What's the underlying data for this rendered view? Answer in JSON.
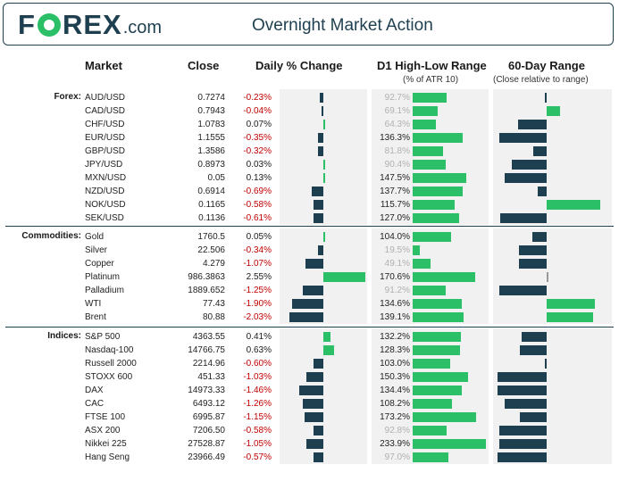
{
  "header": {
    "logo_f": "F",
    "logo_rex": "REX",
    "logo_com": ".com",
    "title": "Overnight Market Action"
  },
  "columns": {
    "market": "Market",
    "close": "Close",
    "change": "Daily % Change",
    "range": "D1 High-Low Range",
    "range_sub": "(% of ATR 10)",
    "sixty": "60-Day Range",
    "sixty_sub": "(Close relative to range)"
  },
  "colors": {
    "positive": "#2bbf68",
    "negative_bar": "#1e3f4f",
    "negative_text": "#c00000",
    "brand": "#1e3f4f"
  },
  "sections": [
    {
      "label": "Forex:",
      "rows": [
        {
          "name": "AUD/USD",
          "close": "0.7274",
          "change": "-0.23%",
          "chg": -0.23,
          "atr": "92.7%",
          "atr_v": 92.7,
          "faint": true,
          "pos": -0.04
        },
        {
          "name": "CAD/USD",
          "close": "0.7943",
          "change": "-0.04%",
          "chg": -0.04,
          "atr": "69.1%",
          "atr_v": 69.1,
          "faint": true,
          "pos": 0.25
        },
        {
          "name": "CHF/USD",
          "close": "1.0783",
          "change": "0.07%",
          "chg": 0.07,
          "atr": "64.3%",
          "atr_v": 64.3,
          "faint": true,
          "pos": -0.53
        },
        {
          "name": "EUR/USD",
          "close": "1.1555",
          "change": "-0.35%",
          "chg": -0.35,
          "atr": "136.3%",
          "atr_v": 136.3,
          "faint": false,
          "pos": -0.88
        },
        {
          "name": "GBP/USD",
          "close": "1.3586",
          "change": "-0.32%",
          "chg": -0.32,
          "atr": "81.8%",
          "atr_v": 81.8,
          "faint": true,
          "pos": -0.25
        },
        {
          "name": "JPY/USD",
          "close": "0.8973",
          "change": "0.03%",
          "chg": 0.03,
          "atr": "90.4%",
          "atr_v": 90.4,
          "faint": true,
          "pos": -0.65
        },
        {
          "name": "MXN/USD",
          "close": "0.05",
          "change": "0.13%",
          "chg": 0.13,
          "atr": "147.5%",
          "atr_v": 147.5,
          "faint": false,
          "pos": -0.78
        },
        {
          "name": "NZD/USD",
          "close": "0.6914",
          "change": "-0.69%",
          "chg": -0.69,
          "atr": "137.7%",
          "atr_v": 137.7,
          "faint": false,
          "pos": -0.17
        },
        {
          "name": "NOK/USD",
          "close": "0.1165",
          "change": "-0.58%",
          "chg": -0.58,
          "atr": "115.7%",
          "atr_v": 115.7,
          "faint": false,
          "pos": 1.0
        },
        {
          "name": "SEK/USD",
          "close": "0.1136",
          "change": "-0.61%",
          "chg": -0.61,
          "atr": "127.0%",
          "atr_v": 127.0,
          "faint": false,
          "pos": -0.87
        }
      ]
    },
    {
      "label": "Commodities:",
      "rows": [
        {
          "name": "Gold",
          "close": "1760.5",
          "change": "0.05%",
          "chg": 0.05,
          "atr": "104.0%",
          "atr_v": 104.0,
          "faint": false,
          "pos": -0.27
        },
        {
          "name": "Silver",
          "close": "22.506",
          "change": "-0.34%",
          "chg": -0.34,
          "atr": "19.5%",
          "atr_v": 19.5,
          "faint": true,
          "pos": -0.52
        },
        {
          "name": "Copper",
          "close": "4.279",
          "change": "-1.07%",
          "chg": -1.07,
          "atr": "49.1%",
          "atr_v": 49.1,
          "faint": true,
          "pos": -0.52
        },
        {
          "name": "Platinum",
          "close": "986.3863",
          "change": "2.55%",
          "chg": 2.55,
          "atr": "170.6%",
          "atr_v": 170.6,
          "faint": false,
          "pos": 0.0
        },
        {
          "name": "Palladium",
          "close": "1889.652",
          "change": "-1.25%",
          "chg": -1.25,
          "atr": "91.2%",
          "atr_v": 91.2,
          "faint": true,
          "pos": -0.88
        },
        {
          "name": "WTI",
          "close": "77.43",
          "change": "-1.90%",
          "chg": -1.9,
          "atr": "134.6%",
          "atr_v": 134.6,
          "faint": false,
          "pos": 0.9
        },
        {
          "name": "Brent",
          "close": "80.88",
          "change": "-2.03%",
          "chg": -2.03,
          "atr": "139.1%",
          "atr_v": 139.1,
          "faint": false,
          "pos": 0.87
        }
      ]
    },
    {
      "label": "Indices:",
      "rows": [
        {
          "name": "S&P 500",
          "close": "4363.55",
          "change": "0.41%",
          "chg": 0.41,
          "atr": "132.2%",
          "atr_v": 132.2,
          "faint": false,
          "pos": -0.47
        },
        {
          "name": "Nasdaq-100",
          "close": "14766.75",
          "change": "0.63%",
          "chg": 0.63,
          "atr": "128.3%",
          "atr_v": 128.3,
          "faint": false,
          "pos": -0.5
        },
        {
          "name": "Russell 2000",
          "close": "2214.96",
          "change": "-0.60%",
          "chg": -0.6,
          "atr": "103.0%",
          "atr_v": 103.0,
          "faint": false,
          "pos": -0.03
        },
        {
          "name": "STOXX 600",
          "close": "451.33",
          "change": "-1.03%",
          "chg": -1.03,
          "atr": "150.3%",
          "atr_v": 150.3,
          "faint": false,
          "pos": -0.92
        },
        {
          "name": "DAX",
          "close": "14973.33",
          "change": "-1.46%",
          "chg": -1.46,
          "atr": "134.4%",
          "atr_v": 134.4,
          "faint": false,
          "pos": -0.92
        },
        {
          "name": "CAC",
          "close": "6493.12",
          "change": "-1.26%",
          "chg": -1.26,
          "atr": "108.2%",
          "atr_v": 108.2,
          "faint": false,
          "pos": -0.78
        },
        {
          "name": "FTSE 100",
          "close": "6995.87",
          "change": "-1.15%",
          "chg": -1.15,
          "atr": "173.2%",
          "atr_v": 173.2,
          "faint": false,
          "pos": -0.5
        },
        {
          "name": "ASX 200",
          "close": "7206.50",
          "change": "-0.58%",
          "chg": -0.58,
          "atr": "92.8%",
          "atr_v": 92.8,
          "faint": true,
          "pos": -0.88
        },
        {
          "name": "Nikkei 225",
          "close": "27528.87",
          "change": "-1.05%",
          "chg": -1.05,
          "atr": "233.9%",
          "atr_v": 233.9,
          "faint": false,
          "pos": -0.88
        },
        {
          "name": "Hang Seng",
          "close": "23966.49",
          "change": "-0.57%",
          "chg": -0.57,
          "atr": "97.0%",
          "atr_v": 97.0,
          "faint": true,
          "pos": -0.92
        }
      ]
    }
  ]
}
